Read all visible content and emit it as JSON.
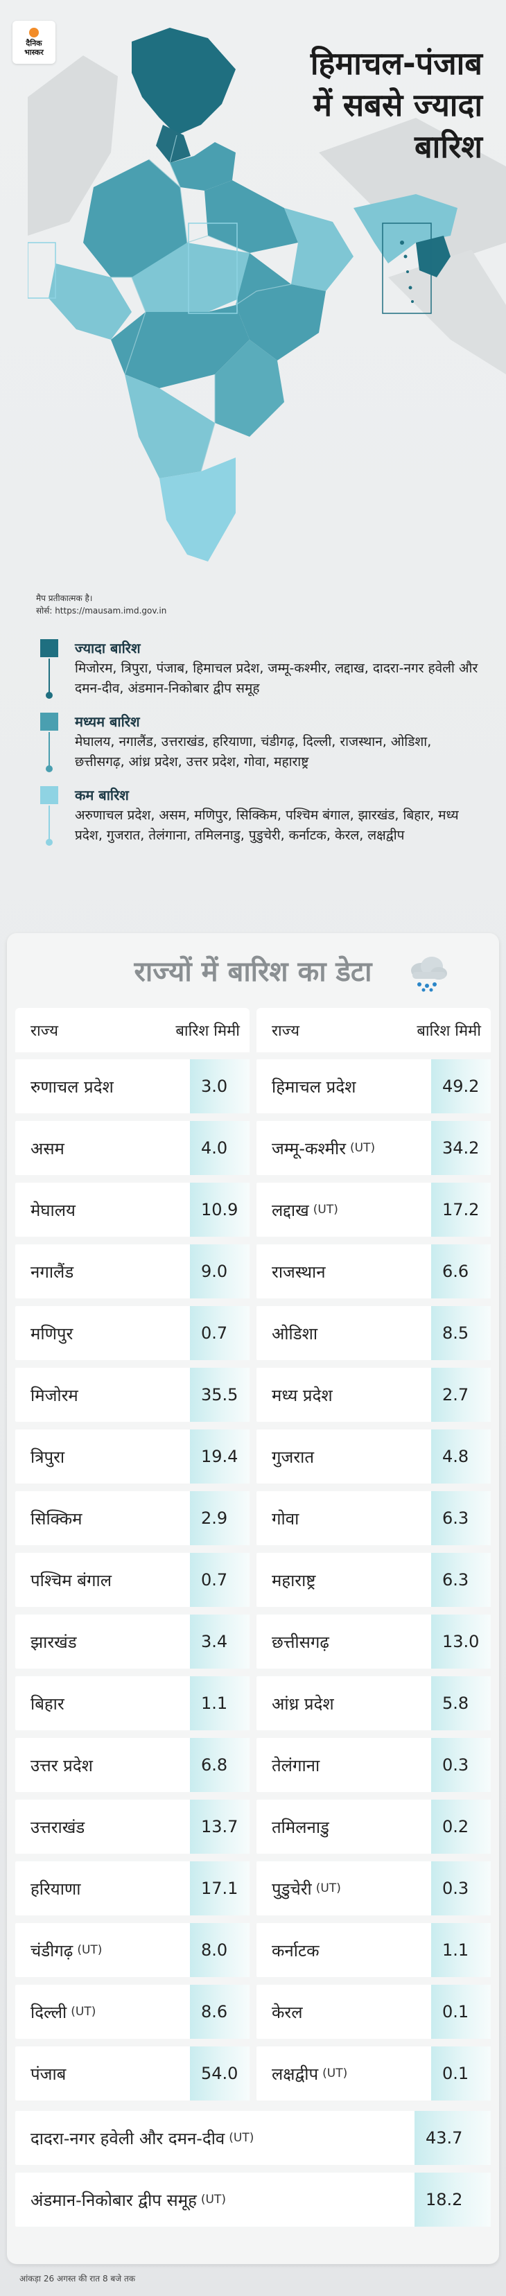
{
  "logo": {
    "line1": "दैनिक",
    "line2": "भास्कर"
  },
  "headline": [
    "हिमाचल-पंजाब",
    "में सबसे ज्यादा",
    "बारिश"
  ],
  "map_note": {
    "line1": "मैप प्रतीकात्मक है।",
    "line2": "सोर्स: https://mausam.imd.gov.in"
  },
  "colors": {
    "high": "#1f6f80",
    "medium": "#4a9fb0",
    "low": "#8fd3e3"
  },
  "legend": [
    {
      "title": "ज्यादा बारिश",
      "text": "मिजोरम, त्रिपुरा, पंजाब, हिमाचल प्रदेश, जम्मू-कश्मीर, लद्दाख, दादरा-नगर हवेली और दमन-दीव, अंडमान-निकोबार द्वीप समूह",
      "color": "#1f6f80"
    },
    {
      "title": "मध्यम बारिश",
      "text": "मेघालय, नगालैंड, उत्तराखंड, हरियाणा, चंडीगढ़, दिल्ली, राजस्थान, ओडिशा, छत्तीसगढ़, आंध्र प्रदेश, उत्तर प्रदेश, गोवा, महाराष्ट्र",
      "color": "#4a9fb0"
    },
    {
      "title": "कम बारिश",
      "text": "अरुणाचल प्रदेश, असम, मणिपुर, सिक्किम, पश्चिम बंगाल, झारखंड, बिहार, मध्य प्रदेश, गुजरात, तेलंगाना, तमिलनाडु, पुडुचेरी, कर्नाटक, केरल, लक्षद्वीप",
      "color": "#8fd3e3"
    }
  ],
  "table": {
    "title": "राज्यों में बारिश का डेटा",
    "header": {
      "state": "राज्य",
      "rain": "बारिश मिमी"
    },
    "left": [
      {
        "name": "रुणाचल प्रदेश",
        "ut": "",
        "value": "3.0"
      },
      {
        "name": "असम",
        "ut": "",
        "value": "4.0"
      },
      {
        "name": "मेघालय",
        "ut": "",
        "value": "10.9"
      },
      {
        "name": "नगालैंड",
        "ut": "",
        "value": "9.0"
      },
      {
        "name": "मणिपुर",
        "ut": "",
        "value": "0.7"
      },
      {
        "name": "मिजोरम",
        "ut": "",
        "value": "35.5"
      },
      {
        "name": "त्रिपुरा",
        "ut": "",
        "value": "19.4"
      },
      {
        "name": "सिक्किम",
        "ut": "",
        "value": "2.9"
      },
      {
        "name": "पश्चिम बंगाल",
        "ut": "",
        "value": "0.7"
      },
      {
        "name": "झारखंड",
        "ut": "",
        "value": "3.4"
      },
      {
        "name": "बिहार",
        "ut": "",
        "value": "1.1"
      },
      {
        "name": "उत्तर प्रदेश",
        "ut": "",
        "value": "6.8"
      },
      {
        "name": "उत्तराखंड",
        "ut": "",
        "value": "13.7"
      },
      {
        "name": "हरियाणा",
        "ut": "",
        "value": "17.1"
      },
      {
        "name": "चंडीगढ़",
        "ut": "(UT)",
        "value": "8.0"
      },
      {
        "name": "दिल्ली",
        "ut": "(UT)",
        "value": "8.6"
      },
      {
        "name": "पंजाब",
        "ut": "",
        "value": "54.0"
      }
    ],
    "right": [
      {
        "name": "हिमाचल प्रदेश",
        "ut": "",
        "value": "49.2"
      },
      {
        "name": "जम्मू-कश्मीर",
        "ut": "(UT)",
        "value": "34.2"
      },
      {
        "name": "लद्दाख",
        "ut": "(UT)",
        "value": "17.2"
      },
      {
        "name": "राजस्थान",
        "ut": "",
        "value": "6.6"
      },
      {
        "name": "ओडिशा",
        "ut": "",
        "value": "8.5"
      },
      {
        "name": "मध्य प्रदेश",
        "ut": "",
        "value": "2.7"
      },
      {
        "name": "गुजरात",
        "ut": "",
        "value": "4.8"
      },
      {
        "name": "गोवा",
        "ut": "",
        "value": "6.3"
      },
      {
        "name": "महाराष्ट्र",
        "ut": "",
        "value": "6.3"
      },
      {
        "name": "छत्तीसगढ़",
        "ut": "",
        "value": "13.0"
      },
      {
        "name": "आंध्र प्रदेश",
        "ut": "",
        "value": "5.8"
      },
      {
        "name": "तेलंगाना",
        "ut": "",
        "value": "0.3"
      },
      {
        "name": "तमिलनाडु",
        "ut": "",
        "value": "0.2"
      },
      {
        "name": "पुडुचेरी",
        "ut": "(UT)",
        "value": "0.3"
      },
      {
        "name": "कर्नाटक",
        "ut": "",
        "value": "1.1"
      },
      {
        "name": "केरल",
        "ut": "",
        "value": "0.1"
      },
      {
        "name": "लक्षद्वीप",
        "ut": "(UT)",
        "value": "0.1"
      }
    ],
    "wide": [
      {
        "name": "दादरा-नगर हवेली और दमन-दीव",
        "ut": "(UT)",
        "value": "43.7"
      },
      {
        "name": "अंडमान-निकोबार द्वीप समूह",
        "ut": "(UT)",
        "value": "18.2"
      }
    ]
  },
  "footnote": "आंकड़ा 26 अगस्त की रात 8 बजे तक"
}
